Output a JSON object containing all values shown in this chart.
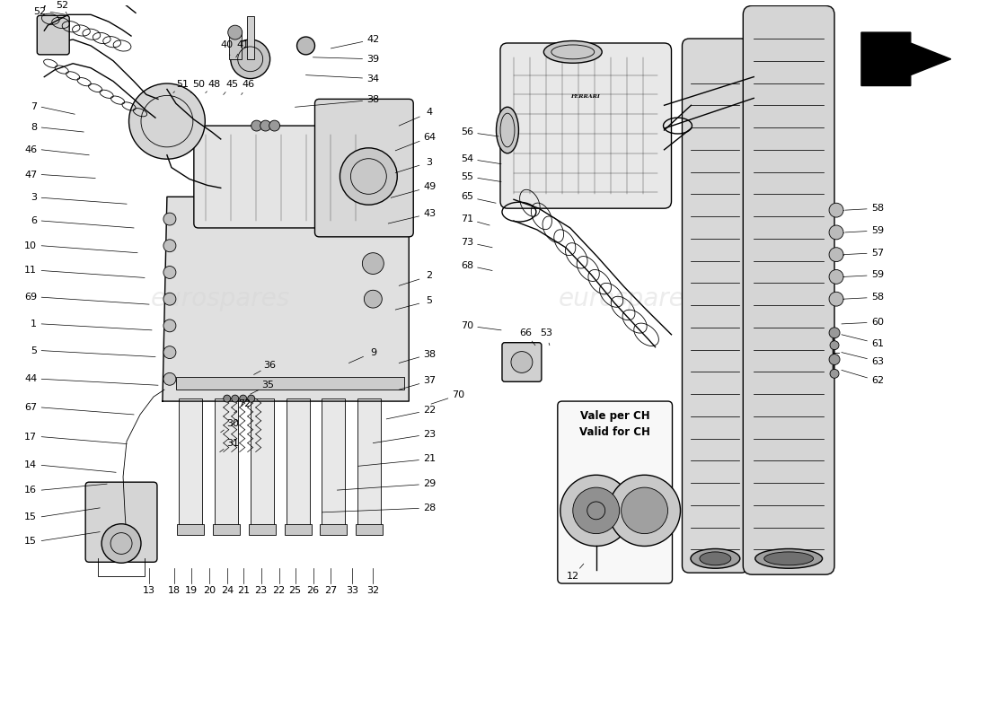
{
  "background_color": "#ffffff",
  "line_color": "#000000",
  "font_size_labels": 8,
  "vale_per_ch": "Vale per CH",
  "valid_for_ch": "Valid for CH",
  "watermark_text": "eurospares",
  "arrow_fill": "#000000"
}
